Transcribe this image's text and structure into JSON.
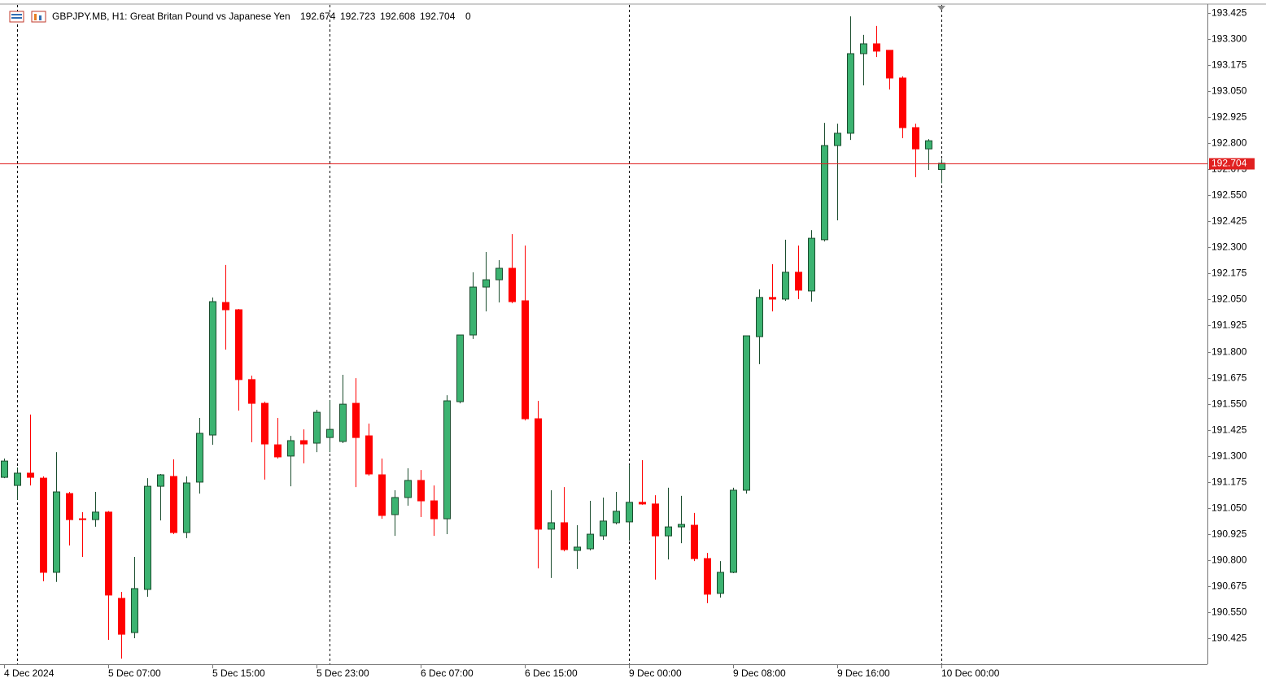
{
  "chart_data": {
    "type": "candlestick",
    "title": "GBPJPY.MB, H1:  Great Britan Pound vs Japanese Yen",
    "spread": 0,
    "categories": [
      "4 Dec 2024",
      null,
      null,
      null,
      null,
      null,
      null,
      null,
      "5 Dec 07:00",
      null,
      null,
      null,
      null,
      null,
      null,
      null,
      "5 Dec 15:00",
      null,
      null,
      null,
      null,
      null,
      null,
      null,
      "5 Dec 23:00",
      null,
      null,
      null,
      null,
      null,
      null,
      null,
      "6 Dec 07:00",
      null,
      null,
      null,
      null,
      null,
      null,
      null,
      "6 Dec 15:00",
      null,
      null,
      null,
      null,
      null,
      null,
      null,
      "9 Dec 00:00",
      null,
      null,
      null,
      null,
      null,
      null,
      null,
      "9 Dec 08:00",
      null,
      null,
      null,
      null,
      null,
      null,
      null,
      "9 Dec 16:00",
      null,
      null,
      null,
      null,
      null,
      null,
      null,
      "10 Dec 00:00"
    ],
    "open": [
      191.197,
      191.158,
      191.217,
      191.193,
      190.741,
      191.119,
      190.998,
      190.994,
      191.03,
      190.616,
      190.452,
      190.659,
      191.154,
      191.201,
      190.932,
      191.174,
      191.4,
      192.036,
      192.001,
      191.666,
      191.552,
      191.353,
      191.299,
      191.373,
      191.361,
      191.388,
      191.369,
      191.552,
      191.396,
      191.209,
      191.018,
      191.1,
      191.182,
      191.084,
      190.998,
      191.56,
      191.88,
      192.11,
      192.145,
      192.2,
      192.044,
      191.478,
      190.948,
      190.979,
      190.846,
      190.854,
      190.916,
      190.979,
      190.983,
      191.077,
      191.069,
      190.916,
      190.959,
      190.967,
      190.807,
      190.64,
      190.741,
      191.135,
      191.872,
      192.06,
      192.052,
      192.181,
      192.091,
      192.337,
      192.789,
      192.848,
      193.23,
      193.277,
      193.246,
      193.113,
      192.875,
      192.773,
      192.674
    ],
    "high": [
      191.287,
      191.244,
      191.498,
      191.201,
      191.318,
      191.127,
      191.03,
      191.127,
      191.035,
      190.647,
      190.815,
      191.193,
      191.213,
      191.283,
      191.201,
      191.482,
      192.06,
      192.216,
      192.005,
      191.685,
      191.56,
      191.482,
      191.396,
      191.427,
      191.521,
      191.568,
      191.689,
      191.673,
      191.455,
      191.287,
      191.135,
      191.24,
      191.232,
      191.158,
      191.591,
      191.88,
      192.181,
      192.278,
      192.239,
      192.364,
      192.309,
      191.564,
      191.135,
      191.15,
      190.967,
      191.084,
      191.1,
      191.127,
      191.256,
      191.279,
      191.111,
      191.147,
      191.108,
      191.026,
      190.834,
      190.795,
      191.147,
      191.876,
      192.099,
      192.22,
      192.337,
      192.309,
      192.383,
      192.898,
      192.894,
      193.409,
      193.32,
      193.363,
      193.246,
      193.121,
      192.894,
      192.82,
      192.723
    ],
    "low": [
      191.193,
      191.088,
      191.158,
      190.698,
      190.695,
      190.87,
      190.815,
      190.96,
      190.417,
      190.327,
      190.425,
      190.624,
      190.99,
      190.924,
      190.905,
      191.119,
      191.353,
      191.81,
      191.517,
      191.365,
      191.186,
      191.287,
      191.154,
      191.264,
      191.318,
      191.318,
      191.361,
      191.15,
      191.205,
      190.998,
      190.916,
      191.061,
      191.006,
      190.916,
      190.924,
      191.552,
      191.861,
      191.993,
      192.036,
      192.032,
      191.47,
      190.76,
      190.714,
      190.842,
      190.757,
      190.846,
      190.897,
      190.971,
      190.893,
      191.065,
      190.706,
      190.803,
      190.881,
      190.795,
      190.593,
      190.62,
      190.737,
      191.119,
      191.74,
      191.993,
      192.044,
      192.052,
      192.04,
      192.329,
      192.43,
      192.816,
      193.078,
      193.214,
      193.058,
      192.824,
      192.637,
      192.672,
      192.608
    ],
    "close": [
      191.275,
      191.217,
      191.197,
      190.741,
      191.127,
      190.994,
      190.994,
      191.03,
      190.632,
      190.444,
      190.663,
      191.154,
      191.209,
      190.932,
      191.17,
      191.408,
      192.04,
      192.001,
      191.666,
      191.552,
      191.357,
      191.295,
      191.373,
      191.357,
      191.509,
      191.427,
      191.548,
      191.388,
      191.213,
      191.014,
      191.1,
      191.182,
      191.084,
      190.998,
      191.564,
      191.88,
      192.11,
      192.145,
      192.2,
      192.04,
      191.478,
      190.948,
      190.979,
      190.85,
      190.862,
      190.924,
      190.987,
      191.034,
      191.077,
      191.069,
      190.916,
      190.959,
      190.971,
      190.807,
      190.636,
      190.741,
      191.135,
      191.876,
      192.06,
      192.052,
      192.181,
      192.095,
      192.344,
      192.789,
      192.848,
      193.23,
      193.277,
      193.242,
      193.113,
      192.875,
      192.773,
      192.812,
      192.704
    ],
    "up_color": "#3cb371",
    "down_color": "#ff0000",
    "price_line_color": "#e02020",
    "ylim": [
      190.3,
      193.464
    ],
    "yticks": [
      190.425,
      {
        "value": 190.55,
        "label": "190.550"
      },
      190.675,
      {
        "value": 190.8,
        "label": "190.800"
      },
      190.925,
      {
        "value": 191.05,
        "label": "191.050"
      },
      191.175,
      {
        "value": 191.3,
        "label": "191.300"
      },
      191.425,
      {
        "value": 191.55,
        "label": "191.550"
      },
      191.675,
      {
        "value": 191.8,
        "label": "191.800"
      },
      191.925,
      {
        "value": 192.05,
        "label": "192.050"
      },
      192.175,
      {
        "value": 192.3,
        "label": "192.300"
      },
      192.425,
      {
        "value": 192.55,
        "label": "192.550"
      },
      192.675,
      {
        "value": 192.8,
        "label": "192.800"
      },
      192.925,
      {
        "value": 193.05,
        "label": "193.050"
      },
      193.175,
      {
        "value": 193.3,
        "label": "193.300"
      },
      193.425
    ]
  }
}
